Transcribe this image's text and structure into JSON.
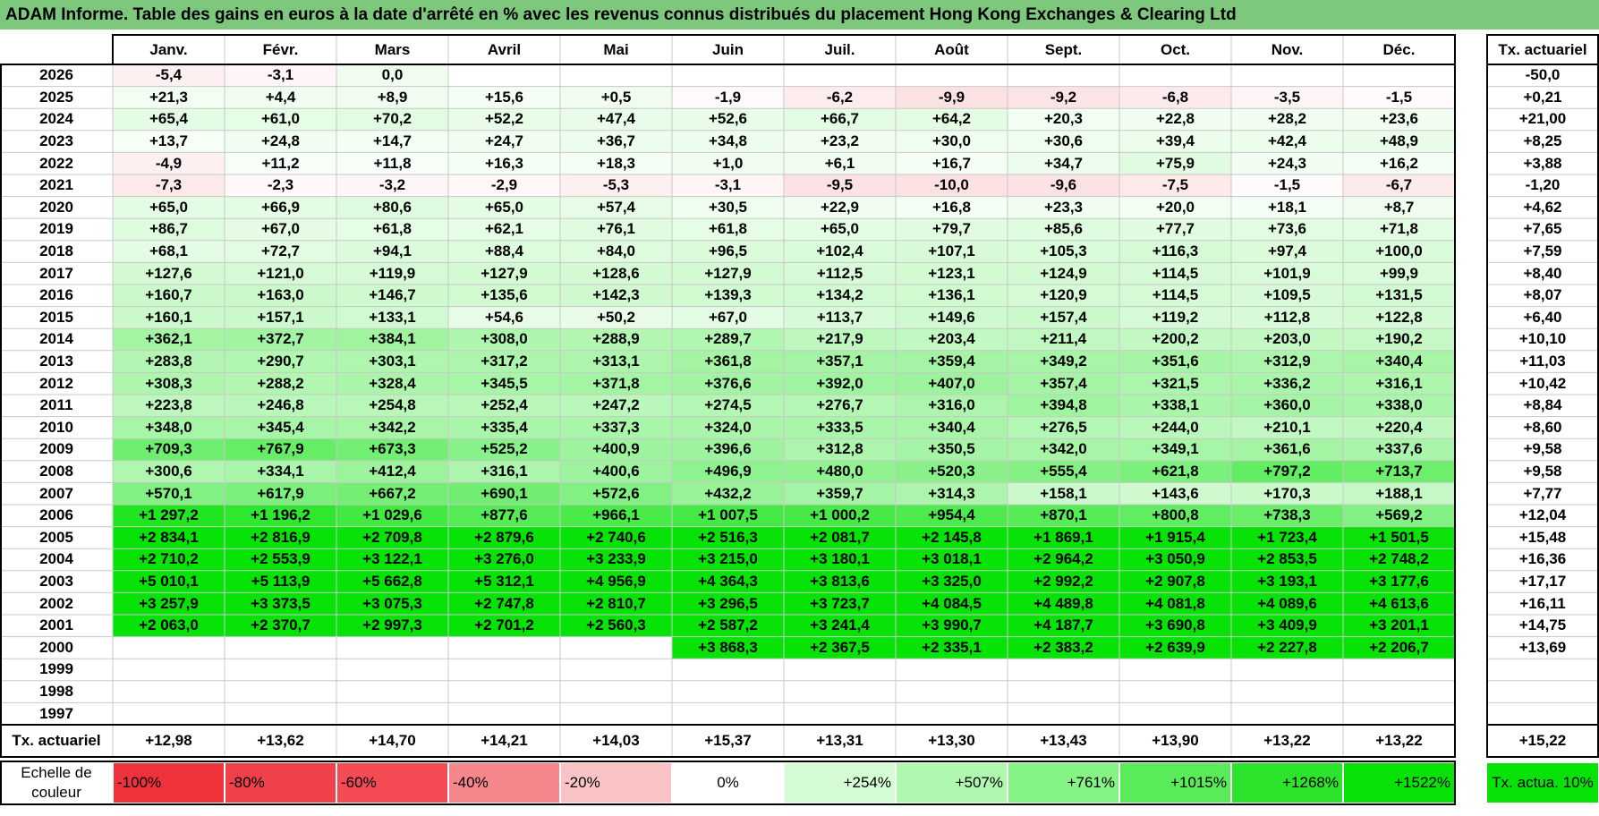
{
  "title": "ADAM Informe. Table des gains en euros à la date d'arrêté en % avec les revenus connus distribués du placement Hong Kong Exchanges & Clearing Ltd",
  "chart_data": {
    "type": "table",
    "months": [
      "Janv.",
      "Févr.",
      "Mars",
      "Avril",
      "Mai",
      "Juin",
      "Juil.",
      "Août",
      "Sept.",
      "Oct.",
      "Nov.",
      "Déc."
    ],
    "rate_header": "Tx. actuariel",
    "rows": [
      {
        "year": "2026",
        "values": [
          "-5,4",
          "-3,1",
          "0,0",
          "",
          "",
          "",
          "",
          "",
          "",
          "",
          "",
          ""
        ],
        "rate": "-50,0"
      },
      {
        "year": "2025",
        "values": [
          "+21,3",
          "+4,4",
          "+8,9",
          "+15,6",
          "+0,5",
          "-1,9",
          "-6,2",
          "-9,9",
          "-9,2",
          "-6,8",
          "-3,5",
          "-1,5"
        ],
        "rate": "+0,21"
      },
      {
        "year": "2024",
        "values": [
          "+65,4",
          "+61,0",
          "+70,2",
          "+52,2",
          "+47,4",
          "+52,6",
          "+66,7",
          "+64,2",
          "+20,3",
          "+22,8",
          "+28,2",
          "+23,6"
        ],
        "rate": "+21,00"
      },
      {
        "year": "2023",
        "values": [
          "+13,7",
          "+24,8",
          "+14,7",
          "+24,7",
          "+36,7",
          "+34,8",
          "+23,2",
          "+30,0",
          "+30,6",
          "+39,4",
          "+42,4",
          "+48,9"
        ],
        "rate": "+8,25"
      },
      {
        "year": "2022",
        "values": [
          "-4,9",
          "+11,2",
          "+11,8",
          "+16,3",
          "+18,3",
          "+1,0",
          "+6,1",
          "+16,7",
          "+34,7",
          "+75,9",
          "+24,3",
          "+16,2"
        ],
        "rate": "+3,88"
      },
      {
        "year": "2021",
        "values": [
          "-7,3",
          "-2,3",
          "-3,2",
          "-2,9",
          "-5,3",
          "-3,1",
          "-9,5",
          "-10,0",
          "-9,6",
          "-7,5",
          "-1,5",
          "-6,7"
        ],
        "rate": "-1,20"
      },
      {
        "year": "2020",
        "values": [
          "+65,0",
          "+66,9",
          "+80,6",
          "+65,0",
          "+57,4",
          "+30,5",
          "+22,9",
          "+16,8",
          "+23,3",
          "+20,0",
          "+18,1",
          "+8,7"
        ],
        "rate": "+4,62"
      },
      {
        "year": "2019",
        "values": [
          "+86,7",
          "+67,0",
          "+61,8",
          "+62,1",
          "+76,1",
          "+61,8",
          "+65,0",
          "+79,7",
          "+85,6",
          "+77,7",
          "+73,6",
          "+71,8"
        ],
        "rate": "+7,65"
      },
      {
        "year": "2018",
        "values": [
          "+68,1",
          "+72,7",
          "+94,1",
          "+88,4",
          "+84,0",
          "+96,5",
          "+102,4",
          "+107,1",
          "+105,3",
          "+116,3",
          "+97,4",
          "+100,0"
        ],
        "rate": "+7,59"
      },
      {
        "year": "2017",
        "values": [
          "+127,6",
          "+121,0",
          "+119,9",
          "+127,9",
          "+128,6",
          "+127,9",
          "+112,5",
          "+123,1",
          "+124,9",
          "+114,5",
          "+101,9",
          "+99,9"
        ],
        "rate": "+8,40"
      },
      {
        "year": "2016",
        "values": [
          "+160,7",
          "+163,0",
          "+146,7",
          "+135,6",
          "+142,3",
          "+139,3",
          "+134,2",
          "+136,1",
          "+120,9",
          "+114,5",
          "+109,5",
          "+131,5"
        ],
        "rate": "+8,07"
      },
      {
        "year": "2015",
        "values": [
          "+160,1",
          "+157,1",
          "+133,1",
          "+54,6",
          "+50,2",
          "+67,0",
          "+113,7",
          "+149,6",
          "+157,4",
          "+119,2",
          "+112,8",
          "+122,8"
        ],
        "rate": "+6,40"
      },
      {
        "year": "2014",
        "values": [
          "+362,1",
          "+372,7",
          "+384,1",
          "+308,0",
          "+288,9",
          "+289,7",
          "+217,9",
          "+203,4",
          "+211,4",
          "+200,2",
          "+203,0",
          "+190,2"
        ],
        "rate": "+10,10"
      },
      {
        "year": "2013",
        "values": [
          "+283,8",
          "+290,7",
          "+303,1",
          "+317,2",
          "+313,1",
          "+361,8",
          "+357,1",
          "+359,4",
          "+349,2",
          "+351,6",
          "+312,9",
          "+340,4"
        ],
        "rate": "+11,03"
      },
      {
        "year": "2012",
        "values": [
          "+308,3",
          "+288,2",
          "+328,4",
          "+345,5",
          "+371,8",
          "+376,6",
          "+392,0",
          "+407,0",
          "+357,4",
          "+321,5",
          "+336,2",
          "+316,1"
        ],
        "rate": "+10,42"
      },
      {
        "year": "2011",
        "values": [
          "+223,8",
          "+246,8",
          "+254,8",
          "+252,4",
          "+247,2",
          "+274,5",
          "+276,7",
          "+316,0",
          "+394,8",
          "+338,1",
          "+360,0",
          "+338,0"
        ],
        "rate": "+8,84"
      },
      {
        "year": "2010",
        "values": [
          "+348,0",
          "+345,4",
          "+342,2",
          "+335,4",
          "+337,3",
          "+324,0",
          "+333,5",
          "+340,4",
          "+276,5",
          "+244,0",
          "+210,1",
          "+220,4"
        ],
        "rate": "+8,60"
      },
      {
        "year": "2009",
        "values": [
          "+709,3",
          "+767,9",
          "+673,3",
          "+525,2",
          "+400,9",
          "+396,6",
          "+312,8",
          "+350,5",
          "+342,0",
          "+349,1",
          "+361,6",
          "+337,6"
        ],
        "rate": "+9,58"
      },
      {
        "year": "2008",
        "values": [
          "+300,6",
          "+334,1",
          "+412,4",
          "+316,1",
          "+400,6",
          "+496,9",
          "+480,0",
          "+520,3",
          "+555,4",
          "+621,8",
          "+797,2",
          "+713,7"
        ],
        "rate": "+9,58"
      },
      {
        "year": "2007",
        "values": [
          "+570,1",
          "+617,9",
          "+667,2",
          "+690,1",
          "+572,6",
          "+432,2",
          "+359,7",
          "+314,3",
          "+158,1",
          "+143,6",
          "+170,3",
          "+188,1"
        ],
        "rate": "+7,77"
      },
      {
        "year": "2006",
        "values": [
          "+1 297,2",
          "+1 196,2",
          "+1 029,6",
          "+877,6",
          "+966,1",
          "+1 007,5",
          "+1 000,2",
          "+954,4",
          "+870,1",
          "+800,8",
          "+738,3",
          "+569,2"
        ],
        "rate": "+12,04"
      },
      {
        "year": "2005",
        "values": [
          "+2 834,1",
          "+2 816,9",
          "+2 709,8",
          "+2 879,6",
          "+2 740,6",
          "+2 516,3",
          "+2 081,7",
          "+2 145,8",
          "+1 869,1",
          "+1 915,4",
          "+1 723,4",
          "+1 501,5"
        ],
        "rate": "+15,48"
      },
      {
        "year": "2004",
        "values": [
          "+2 710,2",
          "+2 553,9",
          "+3 122,1",
          "+3 276,0",
          "+3 233,9",
          "+3 215,0",
          "+3 180,1",
          "+3 018,1",
          "+2 964,2",
          "+3 050,9",
          "+2 853,5",
          "+2 748,2"
        ],
        "rate": "+16,36"
      },
      {
        "year": "2003",
        "values": [
          "+5 010,1",
          "+5 113,9",
          "+5 662,8",
          "+5 312,1",
          "+4 956,9",
          "+4 364,3",
          "+3 813,6",
          "+3 325,0",
          "+2 992,2",
          "+2 907,8",
          "+3 193,1",
          "+3 177,6"
        ],
        "rate": "+17,17"
      },
      {
        "year": "2002",
        "values": [
          "+3 257,9",
          "+3 373,5",
          "+3 075,3",
          "+2 747,8",
          "+2 810,7",
          "+3 296,5",
          "+3 723,7",
          "+4 084,5",
          "+4 489,8",
          "+4 081,8",
          "+4 089,6",
          "+4 613,6"
        ],
        "rate": "+16,11"
      },
      {
        "year": "2001",
        "values": [
          "+2 063,0",
          "+2 370,7",
          "+2 997,3",
          "+2 701,2",
          "+2 560,3",
          "+2 587,2",
          "+3 241,4",
          "+3 990,7",
          "+4 187,7",
          "+3 690,8",
          "+3 409,9",
          "+3 201,1"
        ],
        "rate": "+14,75"
      },
      {
        "year": "2000",
        "values": [
          "",
          "",
          "",
          "",
          "",
          "+3 868,3",
          "+2 367,5",
          "+2 335,1",
          "+2 383,2",
          "+2 639,9",
          "+2 227,8",
          "+2 206,7"
        ],
        "rate": "+13,69"
      },
      {
        "year": "1999",
        "values": [
          "",
          "",
          "",
          "",
          "",
          "",
          "",
          "",
          "",
          "",
          "",
          ""
        ],
        "rate": ""
      },
      {
        "year": "1998",
        "values": [
          "",
          "",
          "",
          "",
          "",
          "",
          "",
          "",
          "",
          "",
          "",
          ""
        ],
        "rate": ""
      },
      {
        "year": "1997",
        "values": [
          "",
          "",
          "",
          "",
          "",
          "",
          "",
          "",
          "",
          "",
          "",
          ""
        ],
        "rate": ""
      }
    ],
    "totals": {
      "label": "Tx. actuariel",
      "values": [
        "+12,98",
        "+13,62",
        "+14,70",
        "+14,21",
        "+14,03",
        "+15,37",
        "+13,31",
        "+13,30",
        "+13,43",
        "+13,90",
        "+13,22",
        "+13,22"
      ],
      "overall": "+15,22"
    },
    "color_scale": {
      "label": "Echelle de couleur",
      "steps": [
        {
          "label": "-100%",
          "color": "#f0323c"
        },
        {
          "label": "-80%",
          "color": "#f0414b"
        },
        {
          "label": "-60%",
          "color": "#f44b55"
        },
        {
          "label": "-40%",
          "color": "#f5868c"
        },
        {
          "label": "-20%",
          "color": "#fac4c6"
        },
        {
          "label": "0%",
          "color": "#ffffff"
        },
        {
          "label": "+254%",
          "color": "#d6fcd6"
        },
        {
          "label": "+507%",
          "color": "#b0f8b0"
        },
        {
          "label": "+761%",
          "color": "#86f386"
        },
        {
          "label": "+1015%",
          "color": "#5aeb5a"
        },
        {
          "label": "+1268%",
          "color": "#2de42d"
        },
        {
          "label": "+1522%",
          "color": "#07e207"
        }
      ],
      "rate_note": "Tx. actua. 10%",
      "rate_note_color": "#07e207"
    },
    "colors": {
      "title_background": "#7dc87d",
      "negative_max": "#f0323c",
      "positive_max": "#07e207"
    }
  }
}
